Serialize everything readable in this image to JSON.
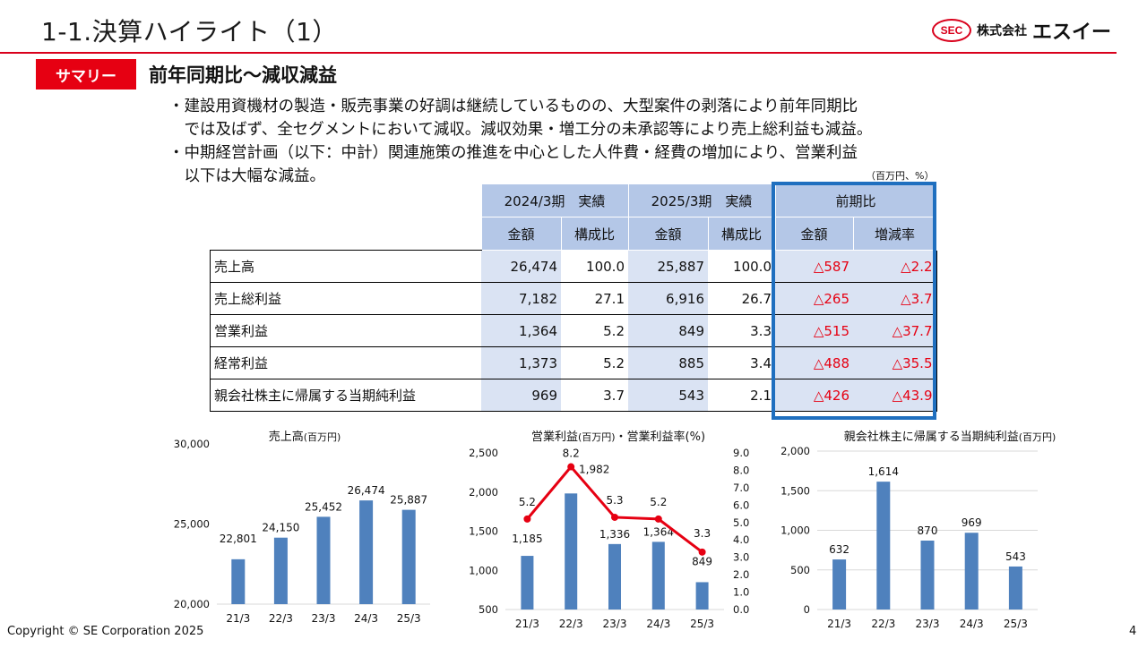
{
  "page": {
    "title": "1-1.決算ハイライト（1）",
    "logo": {
      "seal": "SEC",
      "text1": "株式会社",
      "text2": "エスイー"
    },
    "tag": "サマリー",
    "headline": "前年同期比～減収減益",
    "bullets": [
      [
        "・建設用資機材の製造・販売事業の好調は継続しているものの、大型案件の剥落により前年同期比",
        "　では及ばず、全セグメントにおいて減収。減収効果・増工分の未承認等により売上総利益も減益。"
      ],
      [
        "・中期経営計画（以下：中計）関連施策の推進を中心とした人件費・経費の増加により、営業利益",
        "　以下は大幅な減益。"
      ]
    ],
    "unit": "（百万円、%）",
    "footer": "Copyright © SE Corporation 2025",
    "page_number": "4"
  },
  "table": {
    "group_headers": [
      "2024/3期　実績",
      "2025/3期　実績",
      "前期比"
    ],
    "sub_headers": [
      "金額",
      "構成比",
      "金額",
      "構成比",
      "金額",
      "増減率"
    ],
    "rows": [
      {
        "label": "売上高",
        "v": [
          "26,474",
          "100.0",
          "25,887",
          "100.0",
          "△587",
          "△2.2"
        ]
      },
      {
        "label": "売上総利益",
        "v": [
          "7,182",
          "27.1",
          "6,916",
          "26.7",
          "△265",
          "△3.7"
        ]
      },
      {
        "label": "営業利益",
        "v": [
          "1,364",
          "5.2",
          "849",
          "3.3",
          "△515",
          "△37.7"
        ]
      },
      {
        "label": "経常利益",
        "v": [
          "1,373",
          "5.2",
          "885",
          "3.4",
          "△488",
          "△35.5"
        ]
      },
      {
        "label": "親会社株主に帰属する当期純利益",
        "v": [
          "969",
          "3.7",
          "543",
          "2.1",
          "△426",
          "△43.9"
        ]
      }
    ]
  },
  "chart_data": [
    {
      "type": "bar",
      "title": "売上高",
      "title_unit": "(百万円)",
      "categories": [
        "21/3",
        "22/3",
        "23/3",
        "24/3",
        "25/3"
      ],
      "values": [
        22801,
        24150,
        25452,
        26474,
        25887
      ],
      "labels": [
        "22,801",
        "24,150",
        "25,452",
        "26,474",
        "25,887"
      ],
      "ylim": [
        20000,
        30000
      ],
      "yticks": [
        20000,
        25000,
        30000
      ],
      "ytick_labels": [
        "20,000",
        "25,000",
        "30,000"
      ],
      "color": "#4f81bd"
    },
    {
      "type": "bar",
      "title": "営業利益",
      "title_unit": "(百万円)",
      "title_rest": "・営業利益率(%)",
      "categories": [
        "21/3",
        "22/3",
        "23/3",
        "24/3",
        "25/3"
      ],
      "values": [
        1185,
        1982,
        1336,
        1364,
        849
      ],
      "labels": [
        "1,185",
        "1,982",
        "1,336",
        "1,364",
        "849"
      ],
      "ylim": [
        500,
        2500
      ],
      "yticks": [
        500,
        1000,
        1500,
        2000,
        2500
      ],
      "ytick_labels": [
        "500",
        "1,000",
        "1,500",
        "2,000",
        "2,500"
      ],
      "color": "#4f81bd",
      "line": {
        "values": [
          5.2,
          8.2,
          5.3,
          5.2,
          3.3
        ],
        "labels": [
          "5.2",
          "8.2",
          "5.3",
          "5.2",
          "3.3"
        ],
        "ylim": [
          0,
          9
        ],
        "yticks": [
          0,
          1,
          2,
          3,
          4,
          5,
          6,
          7,
          8,
          9
        ],
        "ytick_labels": [
          "0.0",
          "1.0",
          "2.0",
          "3.0",
          "4.0",
          "5.0",
          "6.0",
          "7.0",
          "8.0",
          "9.0"
        ],
        "color": "#e60012"
      }
    },
    {
      "type": "bar",
      "title": "親会社株主に帰属する当期純利益",
      "title_unit": "(百万円)",
      "categories": [
        "21/3",
        "22/3",
        "23/3",
        "24/3",
        "25/3"
      ],
      "values": [
        632,
        1614,
        870,
        969,
        543
      ],
      "labels": [
        "632",
        "1,614",
        "870",
        "969",
        "543"
      ],
      "ylim": [
        0,
        2000
      ],
      "yticks": [
        0,
        500,
        1000,
        1500,
        2000
      ],
      "ytick_labels": [
        "0",
        "500",
        "1,000",
        "1,500",
        "2,000"
      ],
      "grid": true,
      "color": "#4f81bd"
    }
  ]
}
